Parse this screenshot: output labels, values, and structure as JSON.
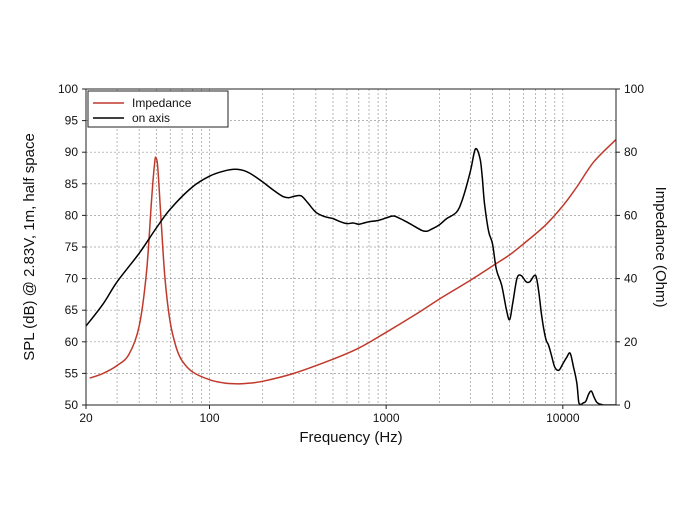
{
  "chart_data": {
    "type": "line",
    "x_scale": "log",
    "xlim": [
      20,
      20000
    ],
    "ylim_left": [
      50,
      100
    ],
    "ylim_right": [
      0,
      100
    ],
    "x_ticks": [
      {
        "value": 20,
        "label": "20"
      },
      {
        "value": 100,
        "label": "100"
      },
      {
        "value": 1000,
        "label": "1000"
      },
      {
        "value": 10000,
        "label": "10000"
      }
    ],
    "y_left_ticks": [
      {
        "value": 50,
        "label": "50"
      },
      {
        "value": 55,
        "label": "55"
      },
      {
        "value": 60,
        "label": "60"
      },
      {
        "value": 65,
        "label": "65"
      },
      {
        "value": 70,
        "label": "70"
      },
      {
        "value": 75,
        "label": "75"
      },
      {
        "value": 80,
        "label": "80"
      },
      {
        "value": 85,
        "label": "85"
      },
      {
        "value": 90,
        "label": "90"
      },
      {
        "value": 95,
        "label": "95"
      },
      {
        "value": 100,
        "label": "100"
      }
    ],
    "y_right_ticks": [
      {
        "value": 0,
        "label": "0"
      },
      {
        "value": 20,
        "label": "20"
      },
      {
        "value": 40,
        "label": "40"
      },
      {
        "value": 60,
        "label": "60"
      },
      {
        "value": 80,
        "label": "80"
      },
      {
        "value": 100,
        "label": "100"
      }
    ],
    "xlabel": "Frequency (Hz)",
    "ylabel_left": "SPL (dB) @ 2.83V, 1m, half space",
    "ylabel_right": "Impedance (Ohm)",
    "grid": true,
    "legend": {
      "placement": "top-left",
      "entries": [
        {
          "name": "Impedance",
          "color": "#c0392b"
        },
        {
          "name": "on axis",
          "color": "#000000"
        }
      ]
    },
    "series": [
      {
        "name": "Impedance",
        "axis": "right",
        "color": "#c0392b",
        "x": [
          21,
          25,
          30,
          35,
          40,
          44,
          47,
          49,
          50,
          51,
          53,
          56,
          60,
          65,
          70,
          80,
          100,
          120,
          140,
          160,
          200,
          300,
          500,
          700,
          1000,
          1500,
          2000,
          3000,
          4000,
          5000,
          6000,
          8000,
          10000,
          12000,
          15000,
          20000
        ],
        "y": [
          8.5,
          10,
          12.5,
          16,
          25,
          42,
          65,
          77,
          78,
          75,
          60,
          40,
          26,
          18,
          14,
          10.5,
          8,
          7,
          6.7,
          6.8,
          7.5,
          10,
          14.5,
          18,
          23,
          29,
          33.5,
          39.5,
          44,
          47.5,
          51,
          57,
          63,
          69,
          77,
          84
        ]
      },
      {
        "name": "on axis",
        "axis": "left",
        "color": "#000000",
        "x": [
          20,
          25,
          30,
          40,
          50,
          60,
          80,
          100,
          120,
          140,
          160,
          180,
          200,
          230,
          260,
          280,
          300,
          330,
          360,
          400,
          450,
          500,
          550,
          600,
          650,
          700,
          750,
          800,
          900,
          1000,
          1100,
          1200,
          1300,
          1400,
          1600,
          1700,
          1800,
          2000,
          2200,
          2500,
          2700,
          3000,
          3200,
          3400,
          3500,
          3600,
          3800,
          4000,
          4200,
          4500,
          4800,
          5000,
          5200,
          5500,
          5800,
          6200,
          6500,
          7000,
          7300,
          7600,
          8000,
          8300,
          8600,
          9000,
          9500,
          10000,
          10500,
          11000,
          11500,
          12000,
          12300,
          12600,
          13000,
          13500,
          14000,
          14500,
          15000,
          15500,
          16000,
          16500,
          17000,
          17500,
          18000,
          18500,
          19000,
          19500,
          20000
        ],
        "y": [
          62.5,
          66,
          69.5,
          74,
          78,
          81,
          84.5,
          86.2,
          87,
          87.3,
          87,
          86.2,
          85.3,
          84,
          83,
          82.8,
          83,
          83.1,
          82,
          80.5,
          79.8,
          79.5,
          79,
          78.7,
          78.8,
          78.6,
          78.8,
          79,
          79.2,
          79.6,
          79.9,
          79.5,
          79,
          78.5,
          77.6,
          77.5,
          77.8,
          78.5,
          79.5,
          80.5,
          82.5,
          87,
          90.5,
          89,
          86,
          82,
          77.5,
          75.5,
          71.5,
          69,
          65,
          63.5,
          66,
          70,
          70.5,
          69.5,
          69.5,
          70.5,
          68,
          64,
          60.5,
          59.5,
          58,
          56,
          55.5,
          56.5,
          57.5,
          58.2,
          56,
          53.5,
          50.5,
          50.1,
          50.3,
          50.6,
          51.7,
          52.2,
          51.3,
          50.5,
          50.2,
          50.1,
          50.0,
          50.0,
          50.0,
          50.0,
          50.0,
          50.0,
          50.0
        ]
      }
    ]
  }
}
